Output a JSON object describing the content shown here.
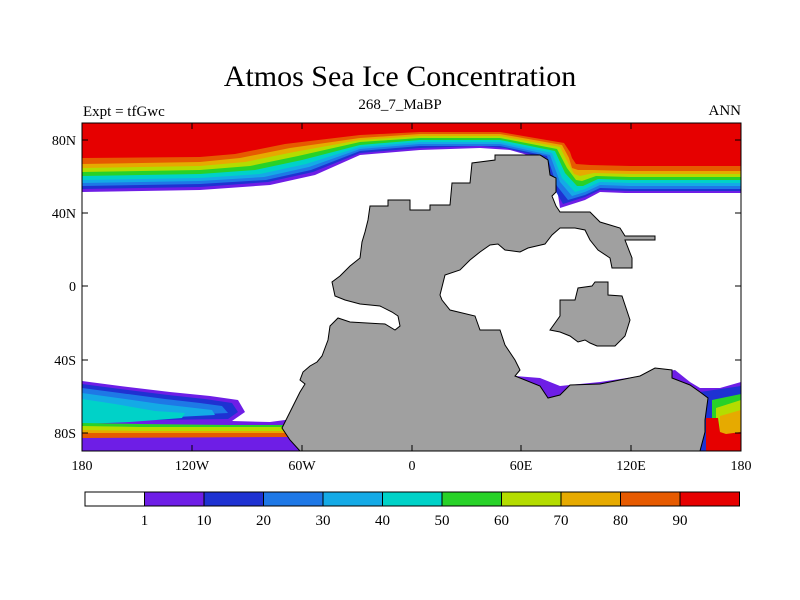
{
  "header": {
    "title": "Atmos Sea Ice Concentration",
    "subtitle": "268_7_MaBP",
    "left_label": "Expt = tfGwc",
    "right_label": "ANN"
  },
  "map": {
    "lat_ticks": [
      "80N",
      "40N",
      "0",
      "40S",
      "80S"
    ],
    "lon_ticks": [
      "180",
      "120W",
      "60W",
      "0",
      "60E",
      "120E",
      "180"
    ],
    "land_color": "#a0a0a0",
    "ocean_color": "#ffffff"
  },
  "colorbar": {
    "labels": [
      "1",
      "10",
      "20",
      "30",
      "40",
      "50",
      "60",
      "70",
      "80",
      "90"
    ],
    "colors": [
      "#ffffff",
      "#6e1ee6",
      "#1e32d2",
      "#1e78e6",
      "#14aae6",
      "#00d2c8",
      "#28d228",
      "#b4dc00",
      "#e6aa00",
      "#e65a00",
      "#e60000"
    ]
  }
}
